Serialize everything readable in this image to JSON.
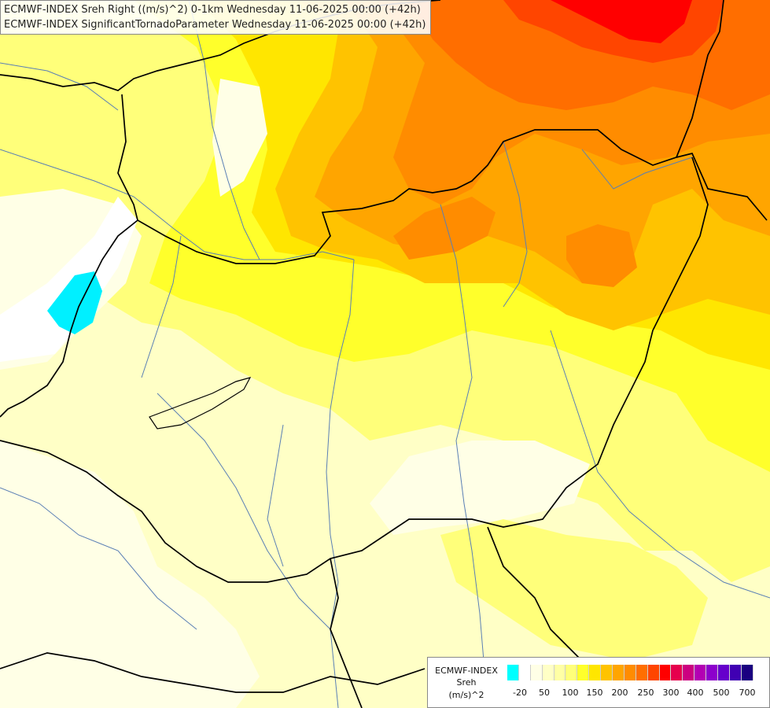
{
  "header": {
    "line1": "ECMWF-INDEX Sreh Right ((m/s)^2) 0-1km Wednesday 11-06-2025 00:00 (+42h)",
    "line2": "ECMWF-INDEX SignificantTornadoParameter Wednesday 11-06-2025 00:00 (+42h)"
  },
  "legend": {
    "model": "ECMWF-INDEX",
    "parameter": "Sreh",
    "unit": "(m/s)^2",
    "ticks": [
      "-20",
      "50",
      "100",
      "150",
      "200",
      "250",
      "300",
      "400",
      "500",
      "700"
    ],
    "colors": [
      "#00ffff",
      "#ffffff",
      "#ffffe6",
      "#ffffc6",
      "#ffffa5",
      "#ffff7a",
      "#ffff2b",
      "#ffe600",
      "#ffc300",
      "#ffa500",
      "#ff8c00",
      "#ff6e00",
      "#ff4500",
      "#ff0000",
      "#e6004d",
      "#cc0080",
      "#b300b3",
      "#8c00cc",
      "#6600cc",
      "#4000b3",
      "#1a0080"
    ]
  }
}
